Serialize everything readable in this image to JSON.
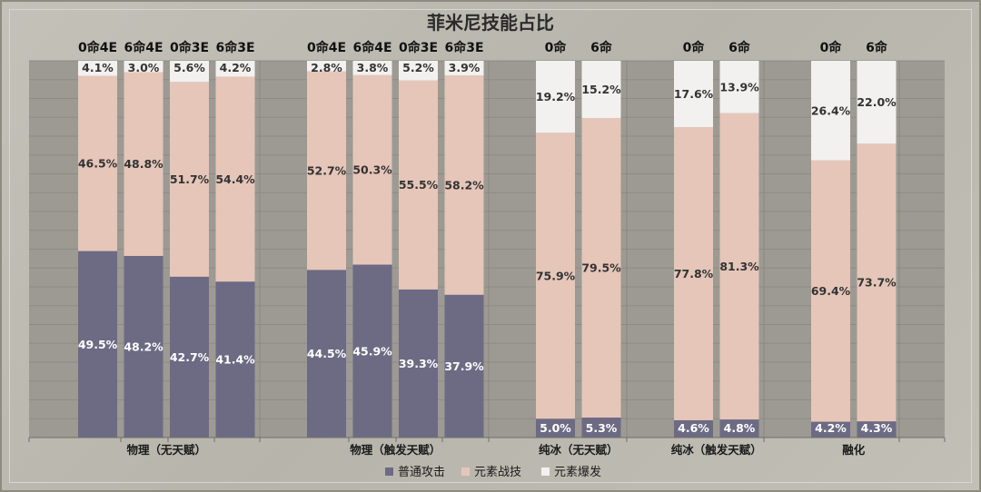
{
  "chart_data": {
    "type": "bar",
    "stacked": true,
    "percent": true,
    "title": "菲米尼技能占比",
    "ylim": [
      0,
      100
    ],
    "grid": true,
    "legend_position": "bottom",
    "colors": {
      "普通攻击": "#6d6a84",
      "元素战技": "#e5c6b9",
      "元素爆发": "#f2f1ef"
    },
    "series_order": [
      "普通攻击",
      "元素战技",
      "元素爆发"
    ],
    "groups": [
      {
        "name": "物理（无天赋）",
        "bars": [
          {
            "label": "0命4E",
            "values": [
              49.5,
              46.5,
              4.1
            ]
          },
          {
            "label": "6命4E",
            "values": [
              48.2,
              48.8,
              3.0
            ]
          },
          {
            "label": "0命3E",
            "values": [
              42.7,
              51.7,
              5.6
            ]
          },
          {
            "label": "6命3E",
            "values": [
              41.4,
              54.4,
              4.2
            ]
          }
        ]
      },
      {
        "name": "物理（触发天赋）",
        "bars": [
          {
            "label": "0命4E",
            "values": [
              44.5,
              52.7,
              2.8
            ]
          },
          {
            "label": "6命4E",
            "values": [
              45.9,
              50.3,
              3.8
            ]
          },
          {
            "label": "0命3E",
            "values": [
              39.3,
              55.5,
              5.2
            ]
          },
          {
            "label": "6命3E",
            "values": [
              37.9,
              58.2,
              3.9
            ]
          }
        ]
      },
      {
        "name": "纯冰（无天赋）",
        "bars": [
          {
            "label": "0命",
            "values": [
              5.0,
              75.9,
              19.2
            ]
          },
          {
            "label": "6命",
            "values": [
              5.3,
              79.5,
              15.2
            ]
          }
        ]
      },
      {
        "name": "纯冰（触发天赋）",
        "bars": [
          {
            "label": "0命",
            "values": [
              4.6,
              77.8,
              17.6
            ]
          },
          {
            "label": "6命",
            "values": [
              4.8,
              81.3,
              13.9
            ]
          }
        ]
      },
      {
        "name": "融化",
        "bars": [
          {
            "label": "0命",
            "values": [
              4.2,
              69.4,
              26.4
            ]
          },
          {
            "label": "6命",
            "values": [
              4.3,
              73.7,
              22.0
            ]
          }
        ]
      }
    ],
    "legend": [
      "普通攻击",
      "元素战技",
      "元素爆发"
    ]
  }
}
